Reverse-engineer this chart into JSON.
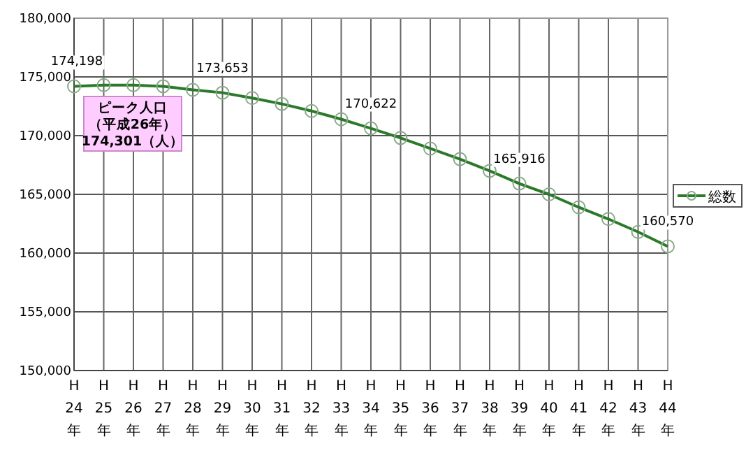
{
  "chart_data": {
    "type": "line",
    "categories": [
      "H\n24\n年",
      "H\n25\n年",
      "H\n26\n年",
      "H\n27\n年",
      "H\n28\n年",
      "H\n29\n年",
      "H\n30\n年",
      "H\n31\n年",
      "H\n32\n年",
      "H\n33\n年",
      "H\n34\n年",
      "H\n35\n年",
      "H\n36\n年",
      "H\n37\n年",
      "H\n38\n年",
      "H\n39\n年",
      "H\n40\n年",
      "H\n41\n年",
      "H\n42\n年",
      "H\n43\n年",
      "H\n44\n年"
    ],
    "series": [
      {
        "name": "総数",
        "color": "#2a7a2a",
        "values": [
          174198,
          174300,
          174301,
          174200,
          173900,
          173653,
          173200,
          172700,
          172100,
          171400,
          170622,
          169800,
          168900,
          168000,
          167000,
          165916,
          165000,
          163900,
          162900,
          161800,
          160570
        ],
        "value_labels": [
          "174,198",
          null,
          null,
          null,
          null,
          "173,653",
          null,
          null,
          null,
          null,
          "170,622",
          null,
          null,
          null,
          null,
          "165,916",
          null,
          null,
          null,
          null,
          "160,570"
        ]
      }
    ],
    "ylim": [
      150000,
      180000
    ],
    "yticks": [
      {
        "value": 150000,
        "label": "150,000"
      },
      {
        "value": 155000,
        "label": "155,000"
      },
      {
        "value": 160000,
        "label": "160,000"
      },
      {
        "value": 165000,
        "label": "165,000"
      },
      {
        "value": 170000,
        "label": "170,000"
      },
      {
        "value": 175000,
        "label": "175,000"
      },
      {
        "value": 180000,
        "label": "180,000"
      }
    ],
    "grid": true,
    "legend": "right",
    "marker": "circle",
    "line_style": "solid",
    "annotations": [
      "ピーク人口",
      "（平成26年）",
      "174,301（人）"
    ]
  }
}
